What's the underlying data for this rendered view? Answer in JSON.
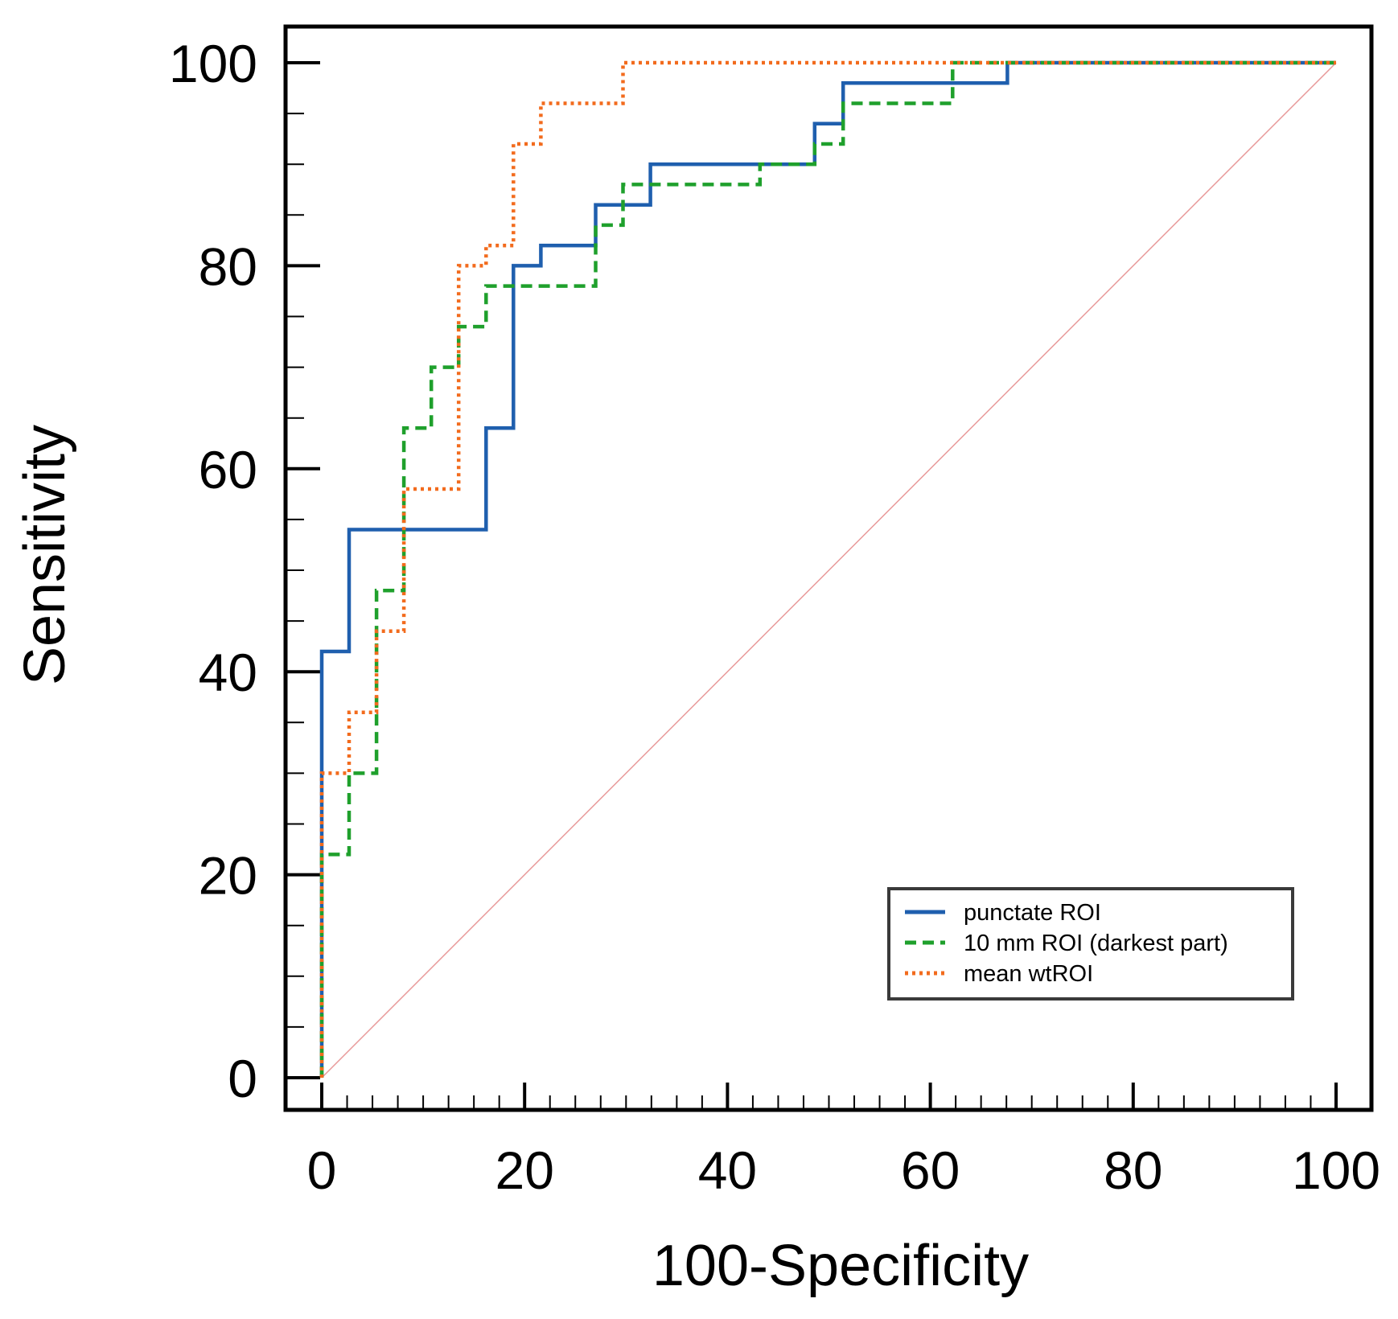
{
  "chart_data": {
    "type": "line",
    "title": "",
    "xlabel": "100-Specificity",
    "ylabel": "Sensitivity",
    "xlim": [
      0,
      100
    ],
    "ylim": [
      0,
      100
    ],
    "x_ticks": [
      "0",
      "20",
      "40",
      "60",
      "80",
      "100"
    ],
    "y_ticks": [
      "0",
      "20",
      "40",
      "60",
      "80",
      "100"
    ],
    "legend_position": "bottom-right",
    "series": [
      {
        "name": "punctate ROI",
        "color": "#1f5fae",
        "style": "solid",
        "x": [
          0,
          0,
          2.7,
          2.7,
          16.2,
          16.2,
          18.9,
          18.9,
          21.6,
          21.6,
          27.0,
          27.0,
          32.4,
          32.4,
          48.6,
          48.6,
          51.4,
          51.4,
          67.6,
          67.6,
          100
        ],
        "y": [
          0,
          42,
          42,
          54,
          54,
          64,
          64,
          80,
          80,
          82,
          82,
          86,
          86,
          90,
          90,
          94,
          94,
          98,
          98,
          100,
          100
        ]
      },
      {
        "name": "10 mm ROI (darkest part)",
        "color": "#1fa02c",
        "style": "dashed",
        "x": [
          0,
          0,
          2.7,
          2.7,
          5.4,
          5.4,
          8.1,
          8.1,
          10.8,
          10.8,
          13.5,
          13.5,
          16.2,
          16.2,
          27.0,
          27.0,
          29.7,
          29.7,
          43.2,
          43.2,
          48.6,
          48.6,
          51.4,
          51.4,
          62.2,
          62.2,
          100
        ],
        "y": [
          0,
          22,
          22,
          30,
          30,
          48,
          48,
          64,
          64,
          70,
          70,
          74,
          74,
          78,
          78,
          84,
          84,
          88,
          88,
          90,
          90,
          92,
          92,
          96,
          96,
          100,
          100
        ]
      },
      {
        "name": "mean wtROI",
        "color": "#f26b1d",
        "style": "dotted",
        "x": [
          0,
          0,
          2.7,
          2.7,
          5.4,
          5.4,
          8.1,
          8.1,
          13.5,
          13.5,
          16.2,
          16.2,
          18.9,
          18.9,
          21.6,
          21.6,
          29.7,
          29.7,
          100
        ],
        "y": [
          0,
          30,
          30,
          36,
          36,
          44,
          44,
          58,
          58,
          80,
          80,
          82,
          82,
          92,
          92,
          96,
          96,
          100,
          100
        ]
      }
    ],
    "reference_line": {
      "color": "#e89a9a",
      "x": [
        0,
        100
      ],
      "y": [
        0,
        100
      ]
    }
  }
}
